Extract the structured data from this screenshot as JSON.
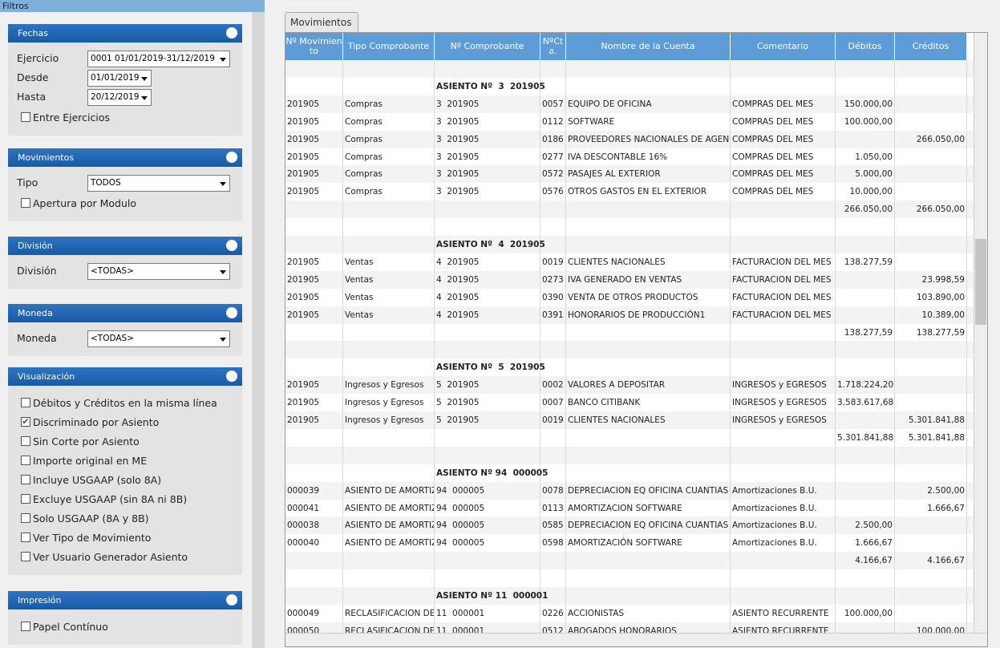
{
  "filtros": {
    "title": "Filtros",
    "sections": [
      {
        "title": "Fechas",
        "fields": [
          {
            "label": "Ejercicio",
            "value": "0001 01/01/2019-31/12/2019"
          },
          {
            "label": "Desde",
            "value": "01/01/2019"
          },
          {
            "label": "Hasta",
            "value": "20/12/2019"
          }
        ],
        "checks": [
          {
            "label": "Entre Ejercicios",
            "checked": false
          }
        ]
      },
      {
        "title": "Movimientos",
        "fields": [
          {
            "label": "Tipo",
            "value": "TODOS"
          }
        ],
        "checks": [
          {
            "label": "Apertura por Modulo",
            "checked": false
          }
        ]
      },
      {
        "title": "División",
        "fields": [
          {
            "label": "División",
            "value": "<TODAS>"
          }
        ],
        "checks": []
      },
      {
        "title": "Moneda",
        "fields": [
          {
            "label": "Moneda",
            "value": "<TODAS>"
          }
        ],
        "checks": []
      },
      {
        "title": "Visualización",
        "fields": [],
        "checks": [
          {
            "label": "Débitos y Créditos en la misma línea",
            "checked": false
          },
          {
            "label": "Discriminado por Asiento",
            "checked": true
          },
          {
            "label": "Sin Corte por Asiento",
            "checked": false
          },
          {
            "label": "Importe original en ME",
            "checked": false
          },
          {
            "label": "Incluye USGAAP (solo 8A)",
            "checked": false
          },
          {
            "label": "Excluye USGAAP (sin 8A ni 8B)",
            "checked": false
          },
          {
            "label": "Solo USGAAP (8A y 8B)",
            "checked": false
          },
          {
            "label": "Ver Tipo de Movimiento",
            "checked": false
          },
          {
            "label": "Ver Usuario Generador Asiento",
            "checked": false
          }
        ]
      },
      {
        "title": "Impresión",
        "fields": [],
        "checks": [
          {
            "label": "Papel Contínuo",
            "checked": false
          }
        ]
      }
    ]
  },
  "tab": "Movimientos",
  "table": {
    "columns": [
      "Nº Movimiento",
      "Tipo Comprobante",
      "Nº Comprobante",
      "NºCta.",
      "Nombre de la Cuenta",
      "Comentario",
      "Débitos",
      "Créditos"
    ],
    "rows": [
      null,
      {
        "asiento": "ASIENTO Nº  3  201905"
      },
      {
        "mov": "201905",
        "tipo": "Compras",
        "comp": "3  201905",
        "cta": "0057",
        "nombre": "EQUIPO DE OFICINA",
        "comentario": "COMPRAS DEL MES",
        "debito": "150.000,00"
      },
      {
        "mov": "201905",
        "tipo": "Compras",
        "comp": "3  201905",
        "cta": "0112",
        "nombre": "SOFTWARE",
        "comentario": "COMPRAS DEL MES",
        "debito": "100.000,00"
      },
      {
        "mov": "201905",
        "tipo": "Compras",
        "comp": "3  201905",
        "cta": "0186",
        "nombre": "PROVEEDORES NACIONALES DE AGENCIA",
        "comentario": "COMPRAS DEL MES",
        "credito": "266.050,00"
      },
      {
        "mov": "201905",
        "tipo": "Compras",
        "comp": "3  201905",
        "cta": "0277",
        "nombre": "IVA DESCONTABLE 16%",
        "comentario": "COMPRAS DEL MES",
        "debito": "1.050,00"
      },
      {
        "mov": "201905",
        "tipo": "Compras",
        "comp": "3  201905",
        "cta": "0572",
        "nombre": "PASAJES AL EXTERIOR",
        "comentario": "COMPRAS DEL MES",
        "debito": "5.000,00"
      },
      {
        "mov": "201905",
        "tipo": "Compras",
        "comp": "3  201905",
        "cta": "0576",
        "nombre": "OTROS GASTOS EN EL EXTERIOR",
        "comentario": "COMPRAS DEL MES",
        "debito": "10.000,00"
      },
      {
        "debito": "266.050,00",
        "credito": "266.050,00"
      },
      null,
      {
        "asiento": "ASIENTO Nº  4  201905"
      },
      {
        "mov": "201905",
        "tipo": "Ventas",
        "comp": "4  201905",
        "cta": "0019",
        "nombre": "CLIENTES NACIONALES",
        "comentario": "FACTURACION DEL MES",
        "debito": "138.277,59"
      },
      {
        "mov": "201905",
        "tipo": "Ventas",
        "comp": "4  201905",
        "cta": "0273",
        "nombre": "IVA GENERADO EN VENTAS",
        "comentario": "FACTURACION DEL MES",
        "credito": "23.998,59"
      },
      {
        "mov": "201905",
        "tipo": "Ventas",
        "comp": "4  201905",
        "cta": "0390",
        "nombre": "VENTA DE OTROS PRODUCTOS",
        "comentario": "FACTURACION DEL MES",
        "credito": "103.890,00"
      },
      {
        "mov": "201905",
        "tipo": "Ventas",
        "comp": "4  201905",
        "cta": "0391",
        "nombre": "HONORARIOS DE PRODUCCIÓN1",
        "comentario": "FACTURACION DEL MES",
        "credito": "10.389,00"
      },
      {
        "debito": "138.277,59",
        "credito": "138.277,59"
      },
      null,
      {
        "asiento": "ASIENTO Nº  5  201905"
      },
      {
        "mov": "201905",
        "tipo": "Ingresos y Egresos",
        "comp": "5  201905",
        "cta": "0002",
        "nombre": "VALORES A DEPOSITAR",
        "comentario": "INGRESOS y EGRESOS",
        "debito": "1.718.224,20"
      },
      {
        "mov": "201905",
        "tipo": "Ingresos y Egresos",
        "comp": "5  201905",
        "cta": "0007",
        "nombre": "BANCO CITIBANK",
        "comentario": "INGRESOS y EGRESOS",
        "debito": "3.583.617,68"
      },
      {
        "mov": "201905",
        "tipo": "Ingresos y Egresos",
        "comp": "5  201905",
        "cta": "0019",
        "nombre": "CLIENTES NACIONALES",
        "comentario": "INGRESOS y EGRESOS",
        "credito": "5.301.841,88"
      },
      {
        "debito": "5.301.841,88",
        "credito": "5.301.841,88"
      },
      null,
      {
        "asiento": "ASIENTO Nº 94  000005"
      },
      {
        "mov": "000039",
        "tipo": "ASIENTO DE AMORTIZA",
        "comp": "94  000005",
        "cta": "0078",
        "nombre": "DEPRECIACION EQ OFICINA CUANTIAS ME",
        "comentario": "Amortizaciones B.U.",
        "credito": "2.500,00"
      },
      {
        "mov": "000041",
        "tipo": "ASIENTO DE AMORTIZA",
        "comp": "94  000005",
        "cta": "0113",
        "nombre": "AMORTIZACION SOFTWARE",
        "comentario": "Amortizaciones B.U.",
        "credito": "1.666,67"
      },
      {
        "mov": "000038",
        "tipo": "ASIENTO DE AMORTIZA",
        "comp": "94  000005",
        "cta": "0585",
        "nombre": "DEPRECIACION EQ OFICINA CUANTIAS  M",
        "comentario": "Amortizaciones B.U.",
        "debito": "2.500,00"
      },
      {
        "mov": "000040",
        "tipo": "ASIENTO DE AMORTIZA",
        "comp": "94  000005",
        "cta": "0598",
        "nombre": "AMORTIZACIÓN SOFTWARE",
        "comentario": "Amortizaciones B.U.",
        "debito": "1.666,67"
      },
      {
        "debito": "4.166,67",
        "credito": "4.166,67"
      },
      null,
      {
        "asiento": "ASIENTO Nº 11  000001"
      },
      {
        "mov": "000049",
        "tipo": "RECLASIFICACION DE C",
        "comp": "11  000001",
        "cta": "0226",
        "nombre": "ACCIONISTAS",
        "comentario": "ASIENTO RECURRENTE",
        "debito": "100.000,00"
      },
      {
        "mov": "000050",
        "tipo": "RECLASIFICACION DE C",
        "comp": "11  000001",
        "cta": "0512",
        "nombre": "ABOGADOS HONORARIOS",
        "comentario": "ASIENTO RECURRENTE",
        "credito": "100.000,00"
      }
    ]
  }
}
